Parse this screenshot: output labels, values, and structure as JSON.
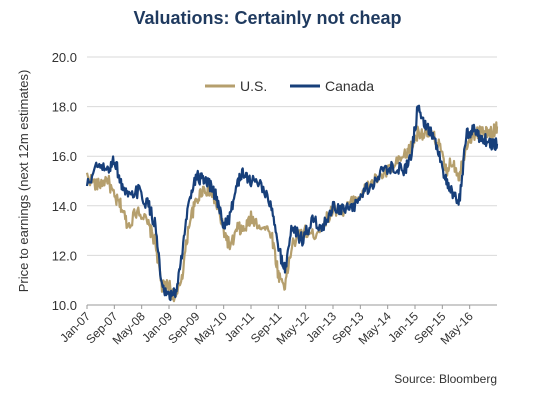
{
  "chart_data": {
    "type": "line",
    "title": "Valuations: Certainly not cheap",
    "ylabel": "Price to earnings (next 12m estimates)",
    "xlabel": "",
    "ylim": [
      10.0,
      20.0
    ],
    "yticks": [
      "10.0",
      "12.0",
      "14.0",
      "16.0",
      "18.0",
      "20.0"
    ],
    "xtick_labels": [
      "Jan-07",
      "Sep-07",
      "May-08",
      "Jan-09",
      "Sep-09",
      "May-10",
      "Jan-11",
      "Sep-11",
      "May-12",
      "Jan-13",
      "Sep-13",
      "May-14",
      "Jan-15",
      "Sep-15",
      "May-16"
    ],
    "x": [
      2007.0,
      2007.25,
      2007.5,
      2007.67,
      2007.83,
      2008.0,
      2008.25,
      2008.5,
      2008.67,
      2008.83,
      2009.0,
      2009.17,
      2009.33,
      2009.5,
      2009.67,
      2009.83,
      2010.0,
      2010.17,
      2010.33,
      2010.5,
      2010.67,
      2010.83,
      2011.0,
      2011.25,
      2011.5,
      2011.67,
      2011.83,
      2012.0,
      2012.25,
      2012.5,
      2012.75,
      2013.0,
      2013.25,
      2013.5,
      2013.75,
      2014.0,
      2014.25,
      2014.5,
      2014.75,
      2014.92,
      2015.08,
      2015.25,
      2015.42,
      2015.58,
      2015.75,
      2015.92,
      2016.08,
      2016.25,
      2016.42,
      2016.58,
      2016.75,
      2016.92,
      2017.0
    ],
    "series": [
      {
        "name": "U.S.",
        "color": "#b59f6d",
        "values": [
          15.2,
          14.8,
          15.1,
          14.3,
          14.0,
          13.2,
          13.9,
          13.2,
          12.5,
          10.7,
          10.8,
          10.2,
          11.3,
          13.4,
          14.2,
          14.7,
          14.6,
          14.0,
          13.0,
          12.3,
          13.1,
          13.0,
          13.5,
          13.2,
          12.9,
          11.2,
          10.8,
          12.4,
          13.0,
          12.8,
          13.2,
          13.9,
          13.8,
          14.2,
          14.6,
          15.0,
          15.3,
          15.6,
          16.0,
          16.4,
          17.0,
          16.9,
          16.8,
          16.5,
          15.4,
          15.8,
          15.2,
          16.5,
          16.9,
          17.0,
          16.9,
          17.0,
          17.2
        ]
      },
      {
        "name": "Canada",
        "color": "#173f7a",
        "values": [
          14.8,
          15.6,
          15.4,
          15.9,
          14.9,
          14.3,
          14.6,
          14.0,
          13.2,
          10.6,
          10.3,
          10.5,
          12.2,
          14.4,
          15.2,
          15.0,
          14.8,
          14.3,
          13.2,
          13.6,
          15.0,
          15.3,
          15.0,
          14.9,
          13.9,
          12.3,
          11.4,
          13.2,
          12.6,
          13.4,
          13.1,
          14.0,
          13.8,
          13.9,
          14.6,
          14.9,
          15.5,
          15.6,
          15.4,
          16.2,
          18.1,
          17.3,
          16.9,
          16.2,
          15.0,
          14.4,
          14.2,
          16.8,
          17.1,
          16.8,
          16.6,
          16.5,
          16.5
        ]
      }
    ],
    "legend_position": "top-center",
    "grid": "horizontal"
  },
  "source_text": "Source: Bloomberg"
}
